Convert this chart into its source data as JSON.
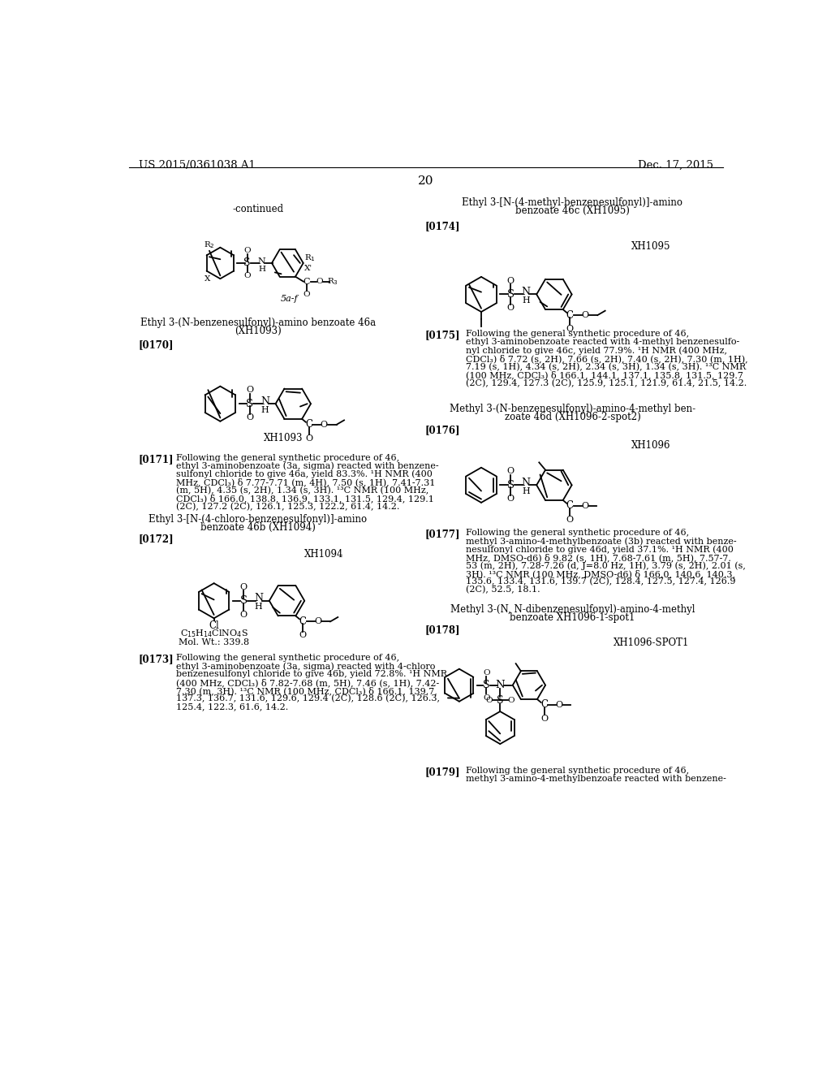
{
  "background_color": "#ffffff",
  "left_header": "US 2015/0361038 A1",
  "right_header": "Dec. 17, 2015",
  "page_number": "20"
}
